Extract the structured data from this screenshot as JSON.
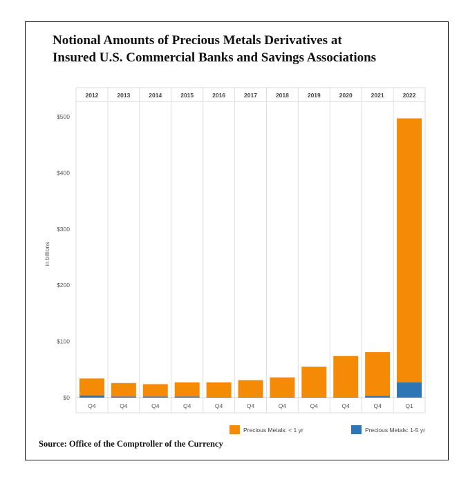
{
  "chart_data": {
    "type": "bar",
    "stacked": true,
    "title_lines": [
      "Notional Amounts of Precious Metals Derivatives at",
      "Insured U.S. Commercial Banks and Savings Associations"
    ],
    "years": [
      "2012",
      "2013",
      "2014",
      "2015",
      "2016",
      "2017",
      "2018",
      "2019",
      "2020",
      "2021",
      "2022"
    ],
    "quarters": [
      "Q4",
      "Q4",
      "Q4",
      "Q4",
      "Q4",
      "Q4",
      "Q4",
      "Q4",
      "Q4",
      "Q4",
      "Q1"
    ],
    "ylabel": "in billions",
    "ylim": [
      0,
      500
    ],
    "yticks": [
      {
        "value": 0,
        "label": "$0"
      },
      {
        "value": 100,
        "label": "$100"
      },
      {
        "value": 200,
        "label": "$200"
      },
      {
        "value": 300,
        "label": "$300"
      },
      {
        "value": 400,
        "label": "$400"
      },
      {
        "value": 500,
        "label": "$500"
      }
    ],
    "series": [
      {
        "name": "Precious Metals: 1-5 yr",
        "color": "#2e75b6",
        "values": [
          4,
          2,
          2,
          2,
          1,
          1,
          1,
          1,
          1,
          3,
          27
        ]
      },
      {
        "name": "Precious Metals: < 1 yr",
        "color": "#f58a07",
        "values": [
          30,
          24,
          22,
          25,
          26,
          30,
          35,
          54,
          73,
          78,
          470
        ]
      }
    ],
    "legend": [
      {
        "label": "Precious Metals: < 1 yr",
        "color": "#f58a07"
      },
      {
        "label": "Precious Metals: 1-5 yr",
        "color": "#2e75b6"
      }
    ],
    "source": "Source: Office of the Comptroller of the Currency"
  }
}
